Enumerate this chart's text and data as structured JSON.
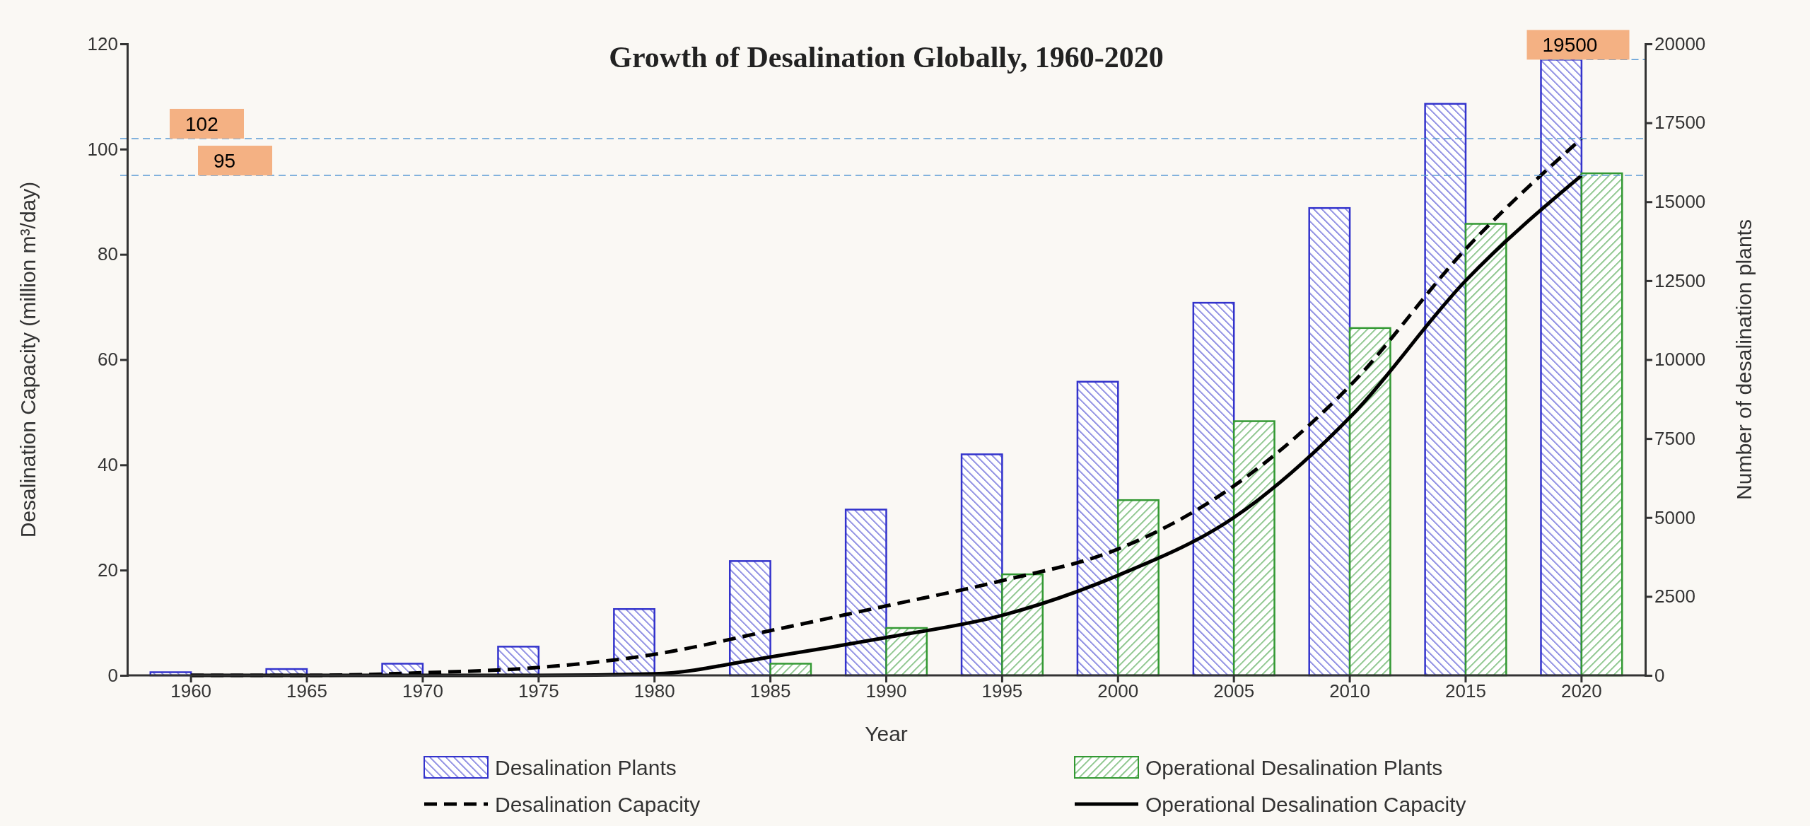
{
  "chart_data": {
    "type": "bar",
    "title": "Growth of Desalination Globally, 1960-2020",
    "xlabel": "Year",
    "ylabel": "Desalination Capacity (million m³/day)",
    "y2label": "Number of desalination plants",
    "categories": [
      "1960",
      "1965",
      "1970",
      "1975",
      "1980",
      "1985",
      "1990",
      "1995",
      "2000",
      "2005",
      "2010",
      "2015",
      "2020"
    ],
    "series": [
      {
        "name": "Desalination Plants",
        "axis": "y2",
        "color": "#3333cc",
        "values": [
          100,
          200,
          370,
          910,
          2100,
          3620,
          5250,
          7000,
          9300,
          11800,
          14800,
          18100,
          19500
        ]
      },
      {
        "name": "Operational Desalination Plants",
        "axis": "y2",
        "color": "#339933",
        "values": [
          0,
          0,
          0,
          0,
          null,
          370,
          1500,
          3200,
          5550,
          8050,
          11000,
          14300,
          15900
        ]
      },
      {
        "name": "Desalination Capacity",
        "type": "line",
        "color": "#000000",
        "line_style": "dashed",
        "values": [
          0,
          0,
          0.5,
          1.5,
          4,
          8.5,
          13.2,
          18,
          24,
          36,
          55,
          81,
          102
        ]
      },
      {
        "name": "Operational Desalination Capacity",
        "type": "line",
        "color": "#000000",
        "line_style": "solid",
        "values": [
          0,
          0,
          0,
          0,
          0.3,
          3.5,
          7.2,
          11.4,
          19,
          30,
          49,
          75,
          95
        ]
      }
    ],
    "ylim": [
      0,
      120
    ],
    "yticks": [
      0,
      20,
      40,
      60,
      80,
      100,
      120
    ],
    "y2lim": [
      0,
      20000
    ],
    "y2ticks": [
      0,
      2500,
      5000,
      7500,
      10000,
      12500,
      15000,
      17500,
      20000
    ],
    "ref_lines": [
      {
        "axis": "y",
        "value": 102,
        "label": "102",
        "color": "#5b9bd5",
        "line_style": "dashed"
      },
      {
        "axis": "y",
        "value": 95,
        "label": "95",
        "color": "#5b9bd5",
        "line_style": "dashed"
      },
      {
        "axis": "y2",
        "value": 19500,
        "label": "19500",
        "color": "#5b9bd5",
        "line_style": "dashed"
      }
    ],
    "legend": "bottom",
    "grid": false
  }
}
